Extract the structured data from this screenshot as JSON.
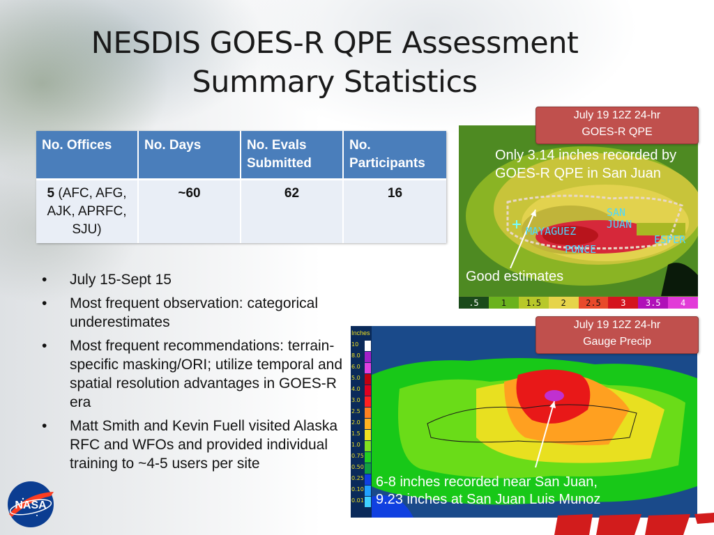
{
  "slide": {
    "title_line1": "NESDIS GOES-R QPE Assessment",
    "title_line2": "Summary Statistics"
  },
  "table": {
    "headers": [
      "No. Offices",
      "No. Days",
      "No. Evals Submitted",
      "No. Participants"
    ],
    "row": {
      "offices_count": "5",
      "offices_detail": "(AFC, AFG, AJK, APRFC, SJU)",
      "days": "~60",
      "evals": "62",
      "participants": "16"
    }
  },
  "bullets": [
    "July 15-Sept 15",
    "Most frequent observation: categorical underestimates",
    "Most frequent recommendations: terrain-specific masking/ORI; utilize temporal and spatial resolution advantages in GOES-R era",
    "Matt Smith and Kevin Fuell visited Alaska RFC and WFOs and provided individual training to ~4-5 users per site"
  ],
  "qpe_image": {
    "caption_line1": "July 19 12Z 24-hr",
    "caption_line2": "GOES-R QPE",
    "annotation": "Only 3.14 inches recorded by GOES-R QPE in San Juan",
    "good_estimates": "Good estimates",
    "map_labels": [
      "SAN",
      "JUAN",
      "MAYAGUEZ",
      "PONCE",
      "ESPER"
    ],
    "colorbar_ticks": [
      ".5",
      "1",
      "1.5",
      "2",
      "2.5",
      "3",
      "3.5",
      "4"
    ],
    "colorbar_colors": [
      "#3a7a1a",
      "#6ab21e",
      "#b8c82a",
      "#e6d44a",
      "#e84a2a",
      "#d4141e",
      "#b010b8",
      "#e23ad8"
    ]
  },
  "gauge_image": {
    "caption_line1": "July 19 12Z 24-hr",
    "caption_line2": "Gauge Precip",
    "annotation_line1": "6-8 inches recorded near San Juan,",
    "annotation_line2": "9.23 inches at San Juan Luis Munoz",
    "legend_title": "Inches",
    "legend_ticks": [
      "10",
      "8.0",
      "6.0",
      "5.0",
      "4.0",
      "3.0",
      "2.5",
      "2.0",
      "1.5",
      "1.0",
      "0.75",
      "0.50",
      "0.25",
      "0.10",
      "0.01"
    ],
    "legend_colors": [
      "#ffffff",
      "#a020c8",
      "#e040e0",
      "#c00010",
      "#e00020",
      "#ff2020",
      "#ff8020",
      "#ffb020",
      "#f0e020",
      "#80e020",
      "#20d020",
      "#10a040",
      "#1040e0",
      "#20a0ff",
      "#40d0ff"
    ]
  },
  "logos": {
    "nasa_text": "NASA"
  }
}
